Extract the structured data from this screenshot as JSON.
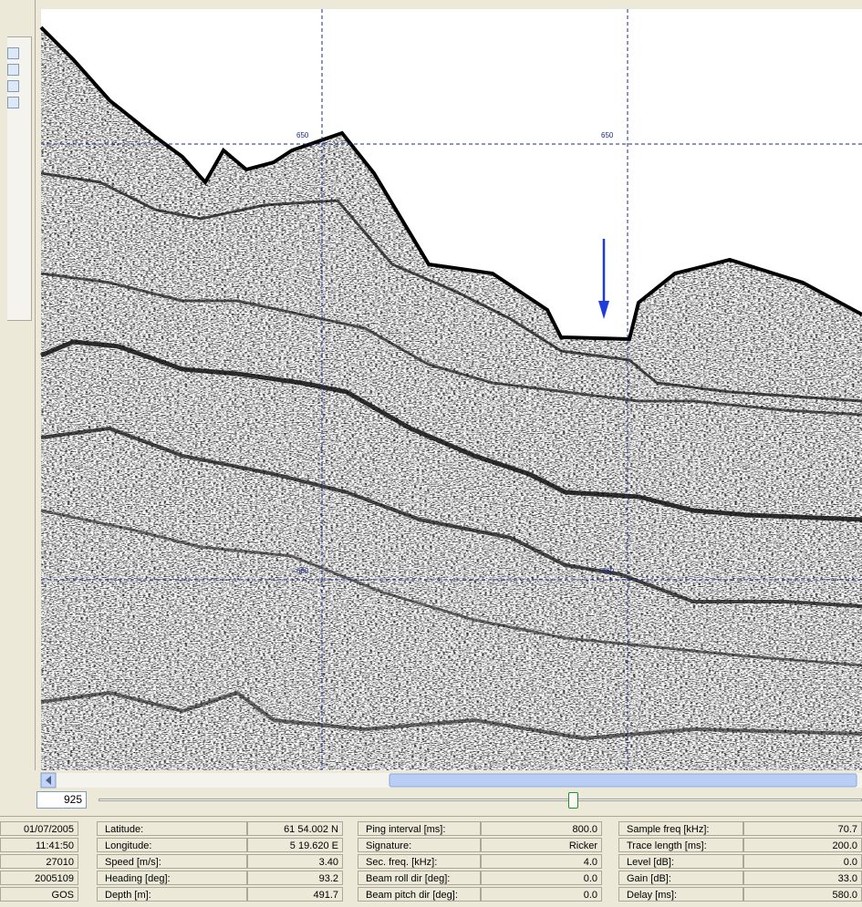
{
  "view": {
    "grid_labels": [
      "650",
      "650",
      "660",
      "660"
    ]
  },
  "slider": {
    "value": "925"
  },
  "status": {
    "left": [
      "01/07/2005",
      "11:41:50",
      "27010",
      "2005109",
      "GOS"
    ],
    "groups": [
      [
        {
          "label": "Latitude:",
          "value": "61 54.002 N"
        },
        {
          "label": "Longitude:",
          "value": "5 19.620 E"
        },
        {
          "label": "Speed [m/s]:",
          "value": "3.40"
        },
        {
          "label": "Heading [deg]:",
          "value": "93.2"
        },
        {
          "label": "Depth [m]:",
          "value": "491.7"
        }
      ],
      [
        {
          "label": "Ping interval [ms]:",
          "value": "800.0"
        },
        {
          "label": "Signature:",
          "value": "Ricker"
        },
        {
          "label": "Sec. freq. [kHz]:",
          "value": "4.0"
        },
        {
          "label": "Beam roll dir [deg]:",
          "value": "0.0"
        },
        {
          "label": "Beam pitch dir [deg]:",
          "value": "0.0"
        }
      ],
      [
        {
          "label": "Sample freq [kHz]:",
          "value": "70.7"
        },
        {
          "label": "Trace length [ms]:",
          "value": "200.0"
        },
        {
          "label": "Level [dB]:",
          "value": "0.0"
        },
        {
          "label": "Gain [dB]:",
          "value": "33.0"
        },
        {
          "label": "Delay [ms]:",
          "value": "580.0"
        }
      ]
    ]
  }
}
